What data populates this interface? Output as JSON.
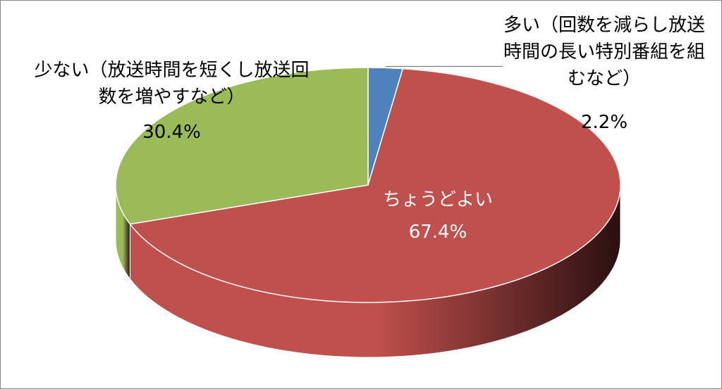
{
  "chart_data": {
    "type": "pie3d",
    "categories": [
      "多い（回数を減らし放送時間の長い特別番組を組むなど）",
      "ちょうどよい",
      "少ない（放送時間を短くし放送回数を増やすなど）"
    ],
    "values": [
      2.2,
      67.4,
      30.4
    ],
    "value_labels": [
      "2.2%",
      "67.4%",
      "30.4%"
    ],
    "colors": [
      "#4f81bd",
      "#c0504d",
      "#9bbb59"
    ]
  }
}
